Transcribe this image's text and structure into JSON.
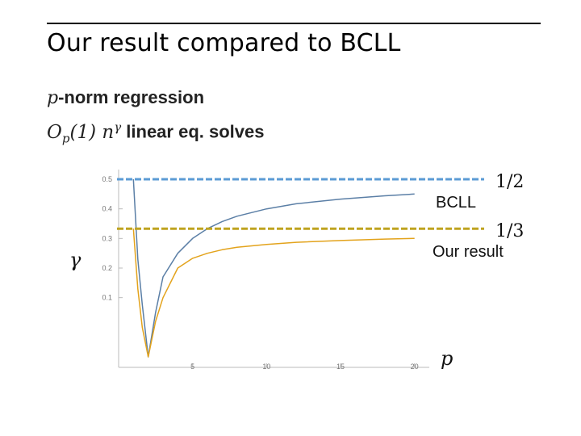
{
  "slide": {
    "title": "Our result compared to BCLL",
    "subtitle_p": "p",
    "subtitle_rest": "-norm regression",
    "subtitle2_math_main": "O",
    "subtitle2_math_sub": "p",
    "subtitle2_math_mid": "(1) n",
    "subtitle2_math_sup": "γ",
    "subtitle2_rest": "linear eq. solves"
  },
  "chart_data": {
    "type": "line",
    "xlabel": "p",
    "ylabel": "γ",
    "xlim": [
      0,
      21
    ],
    "ylim": [
      -0.1,
      0.5
    ],
    "xticks": [
      5,
      10,
      15,
      20
    ],
    "yticks": [
      0.1,
      0.2,
      0.3,
      0.4,
      0.5
    ],
    "series": [
      {
        "name": "BCLL",
        "color": "#5b7fa6",
        "x": [
          1,
          1.3,
          1.6,
          2,
          2.5,
          3,
          4,
          5,
          6,
          7,
          8,
          10,
          12,
          15,
          18,
          20
        ],
        "y": [
          0.5,
          0.23,
          0.077,
          -0.1,
          0.05,
          0.17,
          0.25,
          0.3,
          0.333,
          0.357,
          0.375,
          0.4,
          0.417,
          0.433,
          0.444,
          0.45
        ]
      },
      {
        "name": "Our result",
        "color": "#e3a31c",
        "x": [
          1,
          1.3,
          1.6,
          2,
          2.5,
          3,
          4,
          5,
          6,
          7,
          8,
          10,
          12,
          15,
          18,
          20
        ],
        "y": [
          0.333,
          0.13,
          0.0,
          -0.1,
          0.02,
          0.1,
          0.2,
          0.233,
          0.25,
          0.262,
          0.27,
          0.28,
          0.287,
          0.293,
          0.298,
          0.3
        ]
      }
    ],
    "reference_lines": [
      {
        "value": 0.5,
        "label": "1/2",
        "color": "#5b9bd5",
        "curve_label": "BCLL"
      },
      {
        "value": 0.333,
        "label": "1/3",
        "color": "#bfa420",
        "curve_label": "Our result"
      }
    ],
    "grid": false,
    "legend": "none"
  }
}
